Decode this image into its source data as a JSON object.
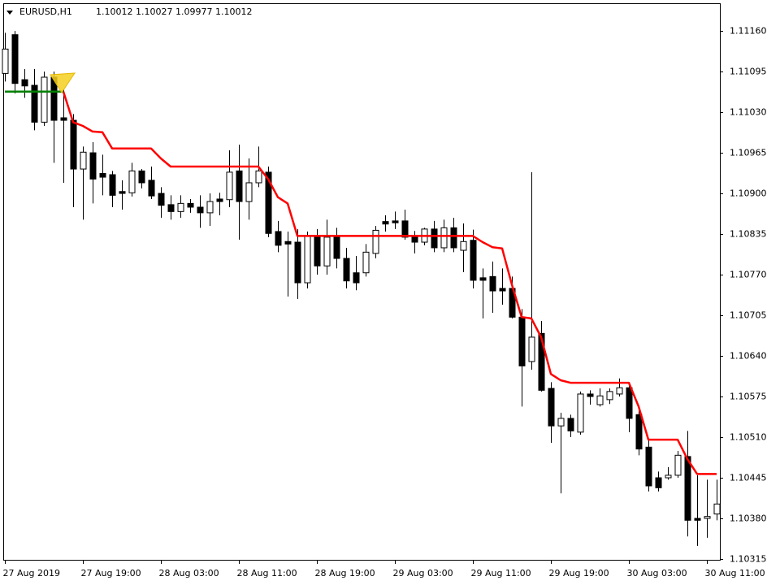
{
  "chart_data": {
    "type": "candlestick",
    "title": "EURUSD,H1",
    "subtitle": "1.10012 1.10027 1.09977 1.10012",
    "up_color": "#ffffff",
    "down_color": "#000000",
    "categories": [
      "27 Aug 2019",
      null,
      null,
      null,
      null,
      null,
      null,
      null,
      "27 Aug 19:00",
      null,
      null,
      null,
      null,
      null,
      null,
      null,
      "28 Aug 03:00",
      null,
      null,
      null,
      null,
      null,
      null,
      null,
      "28 Aug 11:00",
      null,
      null,
      null,
      null,
      null,
      null,
      null,
      "28 Aug 19:00",
      null,
      null,
      null,
      null,
      null,
      null,
      null,
      "29 Aug 03:00",
      null,
      null,
      null,
      null,
      null,
      null,
      null,
      "29 Aug 11:00",
      null,
      null,
      null,
      null,
      null,
      null,
      null,
      "29 Aug 19:00",
      null,
      null,
      null,
      null,
      null,
      null,
      null,
      "30 Aug 03:00",
      null,
      null,
      null,
      null,
      null,
      null,
      null,
      "30 Aug 11:00",
      null
    ],
    "open": [
      1.11092,
      1.11154,
      1.11082,
      1.11073,
      1.11014,
      1.11086,
      1.11021,
      1.11017,
      1.10939,
      1.10965,
      1.10932,
      1.1093,
      1.10903,
      1.10901,
      1.10936,
      1.10921,
      1.109,
      1.10882,
      1.10871,
      1.10884,
      1.10878,
      1.10869,
      1.10891,
      1.1089,
      1.10936,
      1.10887,
      1.10917,
      1.10934,
      1.10839,
      1.10823,
      1.10822,
      1.10757,
      1.10832,
      1.10784,
      1.10832,
      1.10796,
      1.10773,
      1.10773,
      1.10804,
      1.10855,
      1.10856,
      1.10856,
      1.10832,
      1.10822,
      1.10843,
      1.10813,
      1.10845,
      1.10809,
      1.10825,
      1.10765,
      1.10767,
      1.10748,
      1.10748,
      1.10702,
      1.10631,
      1.10676,
      1.10588,
      1.10528,
      1.1054,
      1.10518,
      1.10579,
      1.10562,
      1.1057,
      1.10579,
      1.10589,
      1.10546,
      1.10494,
      1.10445,
      1.10445,
      1.10449,
      1.10479,
      1.1038,
      1.1038,
      1.10387
    ],
    "high": [
      1.11157,
      1.1116,
      1.11099,
      1.11099,
      1.11095,
      1.11095,
      1.11066,
      1.11027,
      1.10975,
      1.10982,
      1.10962,
      1.10936,
      1.10921,
      1.10949,
      1.10939,
      1.10943,
      1.1091,
      1.10897,
      1.10897,
      1.10891,
      1.10897,
      1.109,
      1.10901,
      1.10969,
      1.10978,
      1.10956,
      1.10975,
      1.10943,
      1.10856,
      1.10839,
      1.10843,
      1.10839,
      1.10843,
      1.10858,
      1.10845,
      1.10813,
      1.108,
      1.10819,
      1.10848,
      1.10865,
      1.10871,
      1.10874,
      1.1084,
      1.10845,
      1.10856,
      1.10858,
      1.10861,
      1.10852,
      1.10842,
      1.1078,
      1.10791,
      1.1078,
      1.10767,
      1.10715,
      1.10934,
      1.10696,
      1.10598,
      1.10549,
      1.10546,
      1.10583,
      1.10585,
      1.10588,
      1.10588,
      1.10604,
      1.10598,
      1.10559,
      1.10507,
      1.10455,
      1.10462,
      1.10488,
      1.1052,
      1.10449,
      1.10442,
      1.10442
    ],
    "low": [
      1.11079,
      1.1106,
      1.11053,
      1.11001,
      1.11008,
      1.10949,
      1.10917,
      1.10878,
      1.10858,
      1.10884,
      1.10897,
      1.10878,
      1.10874,
      1.10895,
      1.10908,
      1.10891,
      1.10861,
      1.10858,
      1.10861,
      1.10869,
      1.10845,
      1.10848,
      1.10865,
      1.10878,
      1.10826,
      1.10858,
      1.1091,
      1.1083,
      1.10806,
      1.10735,
      1.10731,
      1.10748,
      1.1077,
      1.1077,
      1.1078,
      1.10748,
      1.10745,
      1.10767,
      1.10796,
      1.10839,
      1.10843,
      1.10826,
      1.10804,
      1.10817,
      1.10806,
      1.10806,
      1.10806,
      1.10774,
      1.10748,
      1.107,
      1.10709,
      1.10722,
      1.107,
      1.10559,
      1.10618,
      1.10583,
      1.10501,
      1.1042,
      1.1051,
      1.10514,
      1.10562,
      1.10559,
      1.10563,
      1.10575,
      1.10518,
      1.10481,
      1.10423,
      1.10423,
      1.10442,
      1.10445,
      1.10351,
      1.10336,
      1.10349,
      1.10377
    ],
    "close": [
      1.11131,
      1.11076,
      1.11072,
      1.11014,
      1.11086,
      1.11017,
      1.11017,
      1.10939,
      1.10966,
      1.10923,
      1.10926,
      1.10897,
      1.109,
      1.10936,
      1.10917,
      1.10896,
      1.10881,
      1.10871,
      1.10884,
      1.10878,
      1.10869,
      1.10887,
      1.10887,
      1.10934,
      1.10887,
      1.10917,
      1.10936,
      1.10836,
      1.10817,
      1.10819,
      1.10757,
      1.10832,
      1.10784,
      1.1083,
      1.10796,
      1.1076,
      1.10757,
      1.10806,
      1.10841,
      1.10851,
      1.10853,
      1.1083,
      1.10822,
      1.10843,
      1.10813,
      1.10845,
      1.10813,
      1.10823,
      1.10761,
      1.10761,
      1.10744,
      1.10744,
      1.10702,
      1.10624,
      1.1067,
      1.10585,
      1.10528,
      1.1054,
      1.1052,
      1.10579,
      1.10575,
      1.10576,
      1.10583,
      1.10589,
      1.1054,
      1.10491,
      1.10432,
      1.10429,
      1.10449,
      1.10481,
      1.10377,
      1.10377,
      1.10383,
      1.10403
    ],
    "overlays": [
      {
        "color": "#ff0000",
        "values": [
          null,
          null,
          null,
          null,
          null,
          null,
          1.11063,
          1.11014,
          1.11008,
          1.10999,
          1.10998,
          1.10972,
          1.10972,
          1.10972,
          1.10972,
          1.10972,
          1.10956,
          1.10943,
          1.10943,
          1.10943,
          1.10943,
          1.10943,
          1.10943,
          1.10943,
          1.10943,
          1.10943,
          1.10943,
          1.10923,
          1.10894,
          1.10884,
          1.10832,
          1.10832,
          1.10832,
          1.10832,
          1.10832,
          1.10832,
          1.10832,
          1.10832,
          1.10832,
          1.10832,
          1.10832,
          1.10832,
          1.10832,
          1.10832,
          1.10832,
          1.10832,
          1.10832,
          1.10832,
          1.10832,
          1.10822,
          1.10814,
          1.10812,
          1.10754,
          1.10702,
          1.107,
          1.1067,
          1.10611,
          1.10601,
          1.10597,
          1.10597,
          1.10597,
          1.10597,
          1.10597,
          1.10597,
          1.10597,
          1.10559,
          1.10506,
          1.10506,
          1.10506,
          1.10506,
          1.10475,
          1.10451,
          1.10451,
          1.10451
        ]
      },
      {
        "color": "#008000",
        "values": [
          1.11063,
          1.11063,
          1.11063,
          1.11063,
          1.11063,
          1.11063,
          1.11063,
          null,
          null,
          null,
          null,
          null,
          null,
          null,
          null,
          null,
          null,
          null,
          null,
          null,
          null,
          null,
          null,
          null,
          null,
          null,
          null,
          null,
          null,
          null,
          null,
          null,
          null,
          null,
          null,
          null,
          null,
          null,
          null,
          null,
          null,
          null,
          null,
          null,
          null,
          null,
          null,
          null,
          null,
          null,
          null,
          null,
          null,
          null,
          null,
          null,
          null,
          null,
          null,
          null,
          null,
          null,
          null,
          null,
          null,
          null,
          null,
          null,
          null,
          null,
          null,
          null,
          null,
          null
        ]
      }
    ],
    "ylim": [
      1.10315,
      1.11203
    ],
    "yticks": [
      {
        "value": 1.1116,
        "label": "1.11160"
      },
      1.11095,
      {
        "value": 1.1103,
        "label": "1.11030"
      },
      1.10965,
      {
        "value": 1.109,
        "label": "1.10900"
      },
      1.10835,
      {
        "value": 1.1077,
        "label": "1.10770"
      },
      1.10705,
      {
        "value": 1.1064,
        "label": "1.10640"
      },
      1.10575,
      {
        "value": 1.1051,
        "label": "1.10510"
      },
      1.10445,
      {
        "value": 1.1038,
        "label": "1.10380"
      },
      1.10315
    ]
  }
}
